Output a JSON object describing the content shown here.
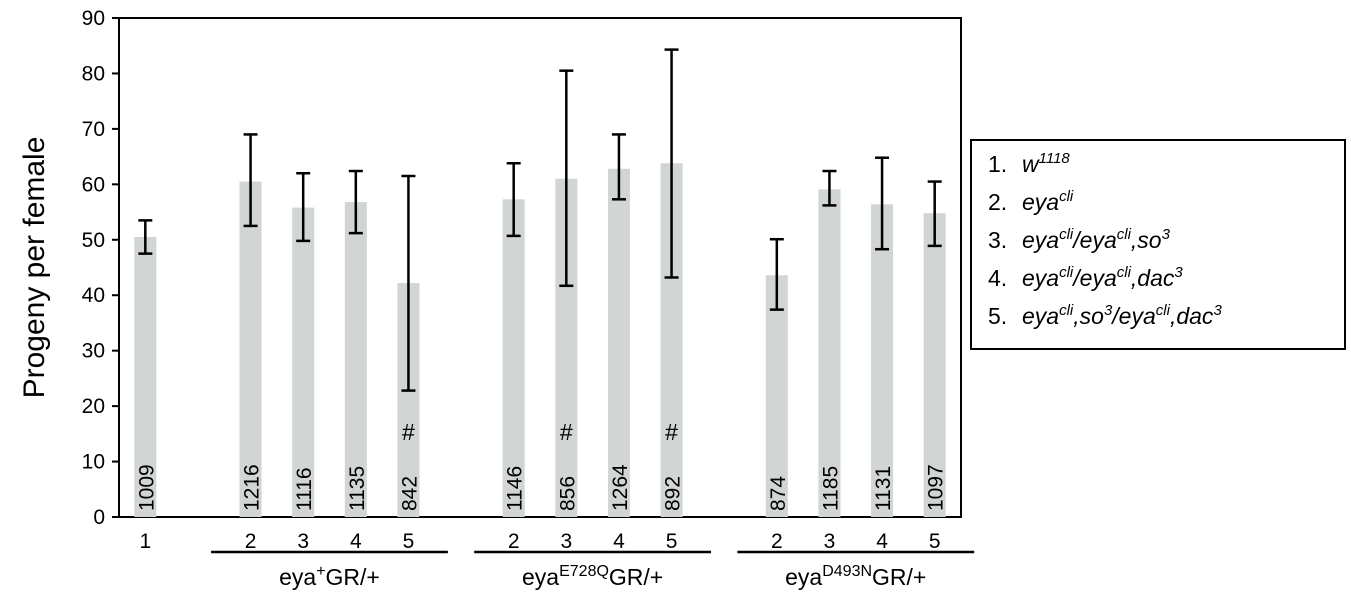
{
  "chart_data": {
    "type": "bar",
    "ylabel": "Progeny per female",
    "ylim": [
      0,
      90
    ],
    "yticks": [
      "0",
      "10",
      "20",
      "30",
      "40",
      "50",
      "60",
      "70",
      "80",
      "90"
    ],
    "grid": false,
    "bar_color": "#d1d5d3",
    "bars": [
      {
        "group": 0,
        "x_label": "1",
        "value": 50.5,
        "err_low": 47.5,
        "err_high": 53.5,
        "n": "1009",
        "mark": ""
      },
      {
        "group": 1,
        "x_label": "2",
        "value": 60.5,
        "err_low": 52.5,
        "err_high": 69.0,
        "n": "1216",
        "mark": ""
      },
      {
        "group": 1,
        "x_label": "3",
        "value": 55.8,
        "err_low": 49.8,
        "err_high": 62.0,
        "n": "1116",
        "mark": ""
      },
      {
        "group": 1,
        "x_label": "4",
        "value": 56.8,
        "err_low": 51.2,
        "err_high": 62.4,
        "n": "1135",
        "mark": ""
      },
      {
        "group": 1,
        "x_label": "5",
        "value": 42.2,
        "err_low": 22.8,
        "err_high": 61.5,
        "n": "842",
        "mark": "#"
      },
      {
        "group": 2,
        "x_label": "2",
        "value": 57.3,
        "err_low": 50.7,
        "err_high": 63.8,
        "n": "1146",
        "mark": ""
      },
      {
        "group": 2,
        "x_label": "3",
        "value": 61.0,
        "err_low": 41.7,
        "err_high": 80.5,
        "n": "856",
        "mark": "#"
      },
      {
        "group": 2,
        "x_label": "4",
        "value": 62.8,
        "err_low": 57.3,
        "err_high": 69.0,
        "n": "1264",
        "mark": ""
      },
      {
        "group": 2,
        "x_label": "5",
        "value": 63.8,
        "err_low": 43.2,
        "err_high": 84.3,
        "n": "892",
        "mark": "#"
      },
      {
        "group": 3,
        "x_label": "2",
        "value": 43.6,
        "err_low": 37.4,
        "err_high": 50.1,
        "n": "874",
        "mark": ""
      },
      {
        "group": 3,
        "x_label": "3",
        "value": 59.1,
        "err_low": 56.2,
        "err_high": 62.4,
        "n": "1185",
        "mark": ""
      },
      {
        "group": 3,
        "x_label": "4",
        "value": 56.4,
        "err_low": 48.3,
        "err_high": 64.8,
        "n": "1131",
        "mark": ""
      },
      {
        "group": 3,
        "x_label": "5",
        "value": 54.8,
        "err_low": 48.9,
        "err_high": 60.5,
        "n": "1097",
        "mark": ""
      }
    ],
    "groups": [
      {
        "label_pre": "",
        "label_sup": "",
        "label_post": ""
      },
      {
        "label_pre": "eya",
        "label_sup": "+",
        "label_post": "GR/+"
      },
      {
        "label_pre": "eya",
        "label_sup": "E728Q",
        "label_post": "GR/+"
      },
      {
        "label_pre": "eya",
        "label_sup": "D493N",
        "label_post": "GR/+"
      }
    ]
  },
  "legend": {
    "items": [
      {
        "num": "1.",
        "parts": [
          [
            "w",
            ""
          ],
          [
            "1118",
            "sup"
          ]
        ]
      },
      {
        "num": "2.",
        "parts": [
          [
            "eya",
            ""
          ],
          [
            "cli",
            "sup"
          ]
        ]
      },
      {
        "num": "3.",
        "parts": [
          [
            "eya",
            ""
          ],
          [
            "cli",
            "sup"
          ],
          [
            "/eya",
            ""
          ],
          [
            "cli",
            "sup"
          ],
          [
            ",so",
            ""
          ],
          [
            "3",
            "sup"
          ]
        ]
      },
      {
        "num": "4.",
        "parts": [
          [
            "eya",
            ""
          ],
          [
            "cli",
            "sup"
          ],
          [
            "/eya",
            ""
          ],
          [
            "cli",
            "sup"
          ],
          [
            ",dac",
            ""
          ],
          [
            "3",
            "sup"
          ]
        ]
      },
      {
        "num": "5.",
        "parts": [
          [
            "eya",
            ""
          ],
          [
            "cli",
            "sup"
          ],
          [
            ",so",
            ""
          ],
          [
            "3",
            "sup"
          ],
          [
            "/eya",
            ""
          ],
          [
            "cli",
            "sup"
          ],
          [
            ",dac",
            ""
          ],
          [
            "3",
            "sup"
          ]
        ]
      }
    ]
  }
}
